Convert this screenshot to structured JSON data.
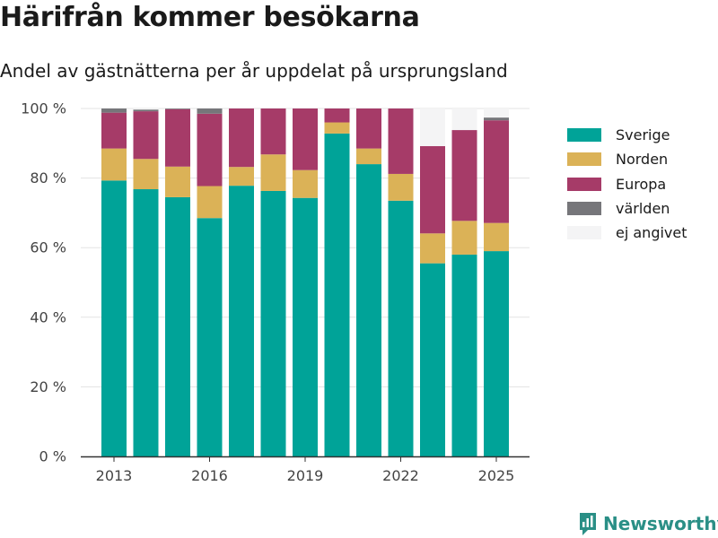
{
  "title": "Härifrån kommer besökarna",
  "subtitle": "Andel av gästnätterna per år uppdelat på ursprungsland",
  "brand": {
    "name": "Newsworthy",
    "icon": "newsworthy-logo-icon",
    "color": "#2a8f86"
  },
  "chart_data": {
    "type": "bar",
    "stacked": true,
    "categories": [
      "2013",
      "2014",
      "2015",
      "2016",
      "2017",
      "2018",
      "2019",
      "2020",
      "2021",
      "2022",
      "2023",
      "2024",
      "2025"
    ],
    "x_tick_labels": [
      "2013",
      "2016",
      "2019",
      "2022",
      "2025"
    ],
    "y_tick_labels": [
      "0 %",
      "20 %",
      "40 %",
      "60 %",
      "80 %",
      "100 %"
    ],
    "ylim": [
      0,
      100
    ],
    "grid": true,
    "legend_position": "right",
    "series": [
      {
        "name": "Sverige",
        "color": "#00a398",
        "values": [
          79.3,
          76.8,
          74.5,
          68.5,
          77.8,
          76.3,
          74.3,
          92.8,
          84.0,
          73.5,
          55.5,
          58.0,
          59.0
        ]
      },
      {
        "name": "Norden",
        "color": "#dbb257",
        "values": [
          9.2,
          8.7,
          8.8,
          9.2,
          5.4,
          10.5,
          8.0,
          3.2,
          4.5,
          7.7,
          8.6,
          9.7,
          8.1
        ]
      },
      {
        "name": "Europa",
        "color": "#a63b68",
        "values": [
          10.3,
          13.7,
          16.5,
          20.8,
          16.8,
          13.2,
          17.7,
          4.0,
          11.5,
          18.8,
          25.1,
          26.1,
          29.5
        ]
      },
      {
        "name": "världen",
        "color": "#76767a",
        "values": [
          1.2,
          0.5,
          0.2,
          1.5,
          0.0,
          0.0,
          0.0,
          0.0,
          0.0,
          0.0,
          0.0,
          0.0,
          0.8
        ]
      },
      {
        "name": "ej angivet",
        "color": "#f4f4f5",
        "values": [
          0.0,
          0.3,
          0.0,
          0.0,
          0.0,
          0.0,
          0.0,
          0.0,
          0.0,
          0.0,
          10.8,
          6.2,
          2.6
        ]
      }
    ]
  }
}
